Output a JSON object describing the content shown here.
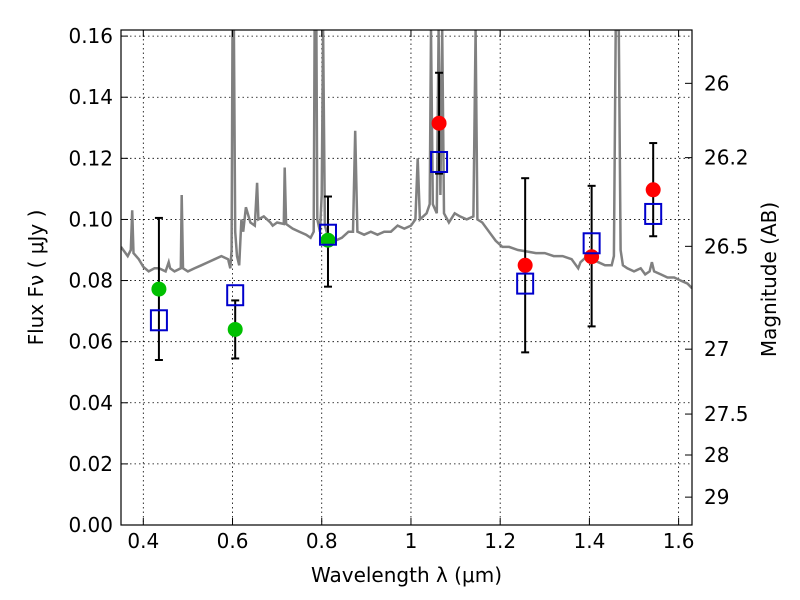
{
  "chart_data": {
    "type": "scatter",
    "xlabel": "Wavelength  λ (μm)",
    "ylabel": "Flux  Fν  ( μJy )",
    "y2label": "Magnitude (AB)",
    "xlim": [
      0.35,
      1.63
    ],
    "ylim": [
      0.0,
      0.162
    ],
    "grid": true,
    "x_ticks": [
      0.4,
      0.6,
      0.8,
      1.0,
      1.2,
      1.4,
      1.6
    ],
    "x_tick_labels": [
      "0.4",
      "0.6",
      "0.8",
      "1",
      "1.2",
      "1.4",
      "1.6"
    ],
    "y_ticks": [
      0.0,
      0.02,
      0.04,
      0.06,
      0.08,
      0.1,
      0.12,
      0.14,
      0.16
    ],
    "y_tick_labels": [
      "0.00",
      "0.02",
      "0.04",
      "0.06",
      "0.08",
      "0.10",
      "0.12",
      "0.14",
      "0.16"
    ],
    "mag_ticks": [
      26,
      26.2,
      26.5,
      27,
      27.5,
      28,
      29
    ],
    "mag_tick_labels": [
      "26",
      "26.2",
      "26.5",
      "27",
      "27.5",
      "28",
      "29"
    ],
    "series": [
      {
        "marker": "circle-filled",
        "color": "#00c000",
        "points": [
          {
            "x": 0.435,
            "y": 0.0772
          },
          {
            "x": 0.606,
            "y": 0.064
          },
          {
            "x": 0.814,
            "y": 0.0932
          }
        ]
      },
      {
        "marker": "circle-filled",
        "color": "#ff0000",
        "points": [
          {
            "x": 1.063,
            "y": 0.1315
          },
          {
            "x": 1.256,
            "y": 0.085
          },
          {
            "x": 1.405,
            "y": 0.0878
          },
          {
            "x": 1.543,
            "y": 0.1097
          }
        ]
      },
      {
        "marker": "square-open",
        "color": "#0000cc",
        "points": [
          {
            "x": 0.435,
            "y": 0.067
          },
          {
            "x": 0.606,
            "y": 0.0752
          },
          {
            "x": 0.814,
            "y": 0.095
          },
          {
            "x": 1.063,
            "y": 0.1188
          },
          {
            "x": 1.256,
            "y": 0.079
          },
          {
            "x": 1.405,
            "y": 0.0922
          },
          {
            "x": 1.543,
            "y": 0.1018
          }
        ]
      }
    ],
    "error_bars": [
      {
        "x": 0.435,
        "low": 0.054,
        "high": 0.1005
      },
      {
        "x": 0.606,
        "low": 0.0545,
        "high": 0.0735
      },
      {
        "x": 0.814,
        "low": 0.078,
        "high": 0.1075
      },
      {
        "x": 1.063,
        "low": 0.115,
        "high": 0.148
      },
      {
        "x": 1.256,
        "low": 0.0565,
        "high": 0.1135
      },
      {
        "x": 1.405,
        "low": 0.065,
        "high": 0.111
      },
      {
        "x": 1.543,
        "low": 0.0945,
        "high": 0.125
      }
    ],
    "spectrum": {
      "color": "#808080",
      "points": [
        [
          0.35,
          0.091
        ],
        [
          0.365,
          0.088
        ],
        [
          0.372,
          0.09
        ],
        [
          0.375,
          0.103
        ],
        [
          0.378,
          0.089
        ],
        [
          0.39,
          0.087
        ],
        [
          0.4,
          0.0845
        ],
        [
          0.412,
          0.083
        ],
        [
          0.425,
          0.084
        ],
        [
          0.435,
          0.084
        ],
        [
          0.45,
          0.083
        ],
        [
          0.457,
          0.086
        ],
        [
          0.46,
          0.084
        ],
        [
          0.47,
          0.083
        ],
        [
          0.484,
          0.084
        ],
        [
          0.486,
          0.108
        ],
        [
          0.489,
          0.084
        ],
        [
          0.5,
          0.083
        ],
        [
          0.515,
          0.084
        ],
        [
          0.53,
          0.085
        ],
        [
          0.545,
          0.086
        ],
        [
          0.56,
          0.087
        ],
        [
          0.575,
          0.088
        ],
        [
          0.59,
          0.087
        ],
        [
          0.595,
          0.084
        ],
        [
          0.598,
          0.09
        ],
        [
          0.6,
          0.162
        ],
        [
          0.603,
          0.162
        ],
        [
          0.606,
          0.096
        ],
        [
          0.61,
          0.088
        ],
        [
          0.615,
          0.085
        ],
        [
          0.62,
          0.1
        ],
        [
          0.624,
          0.096
        ],
        [
          0.63,
          0.104
        ],
        [
          0.64,
          0.099
        ],
        [
          0.65,
          0.098
        ],
        [
          0.655,
          0.112
        ],
        [
          0.658,
          0.1
        ],
        [
          0.67,
          0.101
        ],
        [
          0.685,
          0.099
        ],
        [
          0.69,
          0.098
        ],
        [
          0.7,
          0.099
        ],
        [
          0.715,
          0.0985
        ],
        [
          0.717,
          0.117
        ],
        [
          0.72,
          0.0985
        ],
        [
          0.735,
          0.097
        ],
        [
          0.75,
          0.096
        ],
        [
          0.765,
          0.095
        ],
        [
          0.775,
          0.094
        ],
        [
          0.782,
          0.096
        ],
        [
          0.784,
          0.162
        ],
        [
          0.788,
          0.162
        ],
        [
          0.79,
          0.1
        ],
        [
          0.796,
          0.096
        ],
        [
          0.8,
          0.108
        ],
        [
          0.803,
          0.162
        ],
        [
          0.807,
          0.098
        ],
        [
          0.815,
          0.094
        ],
        [
          0.83,
          0.093
        ],
        [
          0.845,
          0.094
        ],
        [
          0.86,
          0.096
        ],
        [
          0.87,
          0.096
        ],
        [
          0.875,
          0.129
        ],
        [
          0.88,
          0.096
        ],
        [
          0.895,
          0.095
        ],
        [
          0.91,
          0.096
        ],
        [
          0.925,
          0.095
        ],
        [
          0.94,
          0.096
        ],
        [
          0.955,
          0.096
        ],
        [
          0.97,
          0.098
        ],
        [
          0.985,
          0.097
        ],
        [
          1.0,
          0.098
        ],
        [
          1.01,
          0.1
        ],
        [
          1.015,
          0.12
        ],
        [
          1.02,
          0.1
        ],
        [
          1.035,
          0.102
        ],
        [
          1.042,
          0.105
        ],
        [
          1.045,
          0.162
        ],
        [
          1.049,
          0.105
        ],
        [
          1.058,
          0.102
        ],
        [
          1.062,
          0.162
        ],
        [
          1.066,
          0.108
        ],
        [
          1.07,
          0.162
        ],
        [
          1.074,
          0.102
        ],
        [
          1.085,
          0.099
        ],
        [
          1.098,
          0.102
        ],
        [
          1.11,
          0.101
        ],
        [
          1.125,
          0.1
        ],
        [
          1.14,
          0.101
        ],
        [
          1.145,
          0.162
        ],
        [
          1.149,
          0.1
        ],
        [
          1.16,
          0.099
        ],
        [
          1.175,
          0.096
        ],
        [
          1.19,
          0.093
        ],
        [
          1.205,
          0.091
        ],
        [
          1.22,
          0.091
        ],
        [
          1.24,
          0.09
        ],
        [
          1.26,
          0.0895
        ],
        [
          1.28,
          0.089
        ],
        [
          1.3,
          0.089
        ],
        [
          1.32,
          0.088
        ],
        [
          1.34,
          0.088
        ],
        [
          1.36,
          0.087
        ],
        [
          1.375,
          0.084
        ],
        [
          1.38,
          0.086
        ],
        [
          1.395,
          0.088
        ],
        [
          1.405,
          0.087
        ],
        [
          1.42,
          0.086
        ],
        [
          1.435,
          0.085
        ],
        [
          1.45,
          0.085
        ],
        [
          1.455,
          0.088
        ],
        [
          1.459,
          0.162
        ],
        [
          1.466,
          0.162
        ],
        [
          1.47,
          0.09
        ],
        [
          1.475,
          0.085
        ],
        [
          1.485,
          0.084
        ],
        [
          1.5,
          0.083
        ],
        [
          1.515,
          0.084
        ],
        [
          1.525,
          0.082
        ],
        [
          1.535,
          0.083
        ],
        [
          1.54,
          0.086
        ],
        [
          1.545,
          0.083
        ],
        [
          1.56,
          0.082
        ],
        [
          1.575,
          0.081
        ],
        [
          1.59,
          0.081
        ],
        [
          1.605,
          0.08
        ],
        [
          1.62,
          0.079
        ],
        [
          1.63,
          0.0775
        ]
      ]
    }
  }
}
